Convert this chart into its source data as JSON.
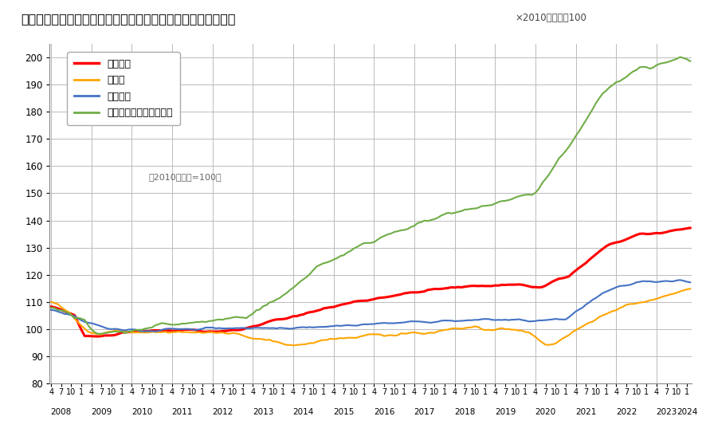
{
  "title": "＜不動産価格指数（住宅）（令和６年２月分・季節調整値）＞",
  "subtitle": "×2010年平均＝100",
  "note": "（2010年平均=100）",
  "ylim": [
    80,
    205
  ],
  "yticks": [
    80,
    90,
    100,
    110,
    120,
    130,
    140,
    150,
    160,
    170,
    180,
    190,
    200
  ],
  "series_names": [
    "住宅総合",
    "住宅地",
    "戸建住宅",
    "マンション（区分所有）"
  ],
  "series_colors": [
    "#ff0000",
    "#ffa500",
    "#4472c4",
    "#70ad47"
  ],
  "series_linewidths": [
    2.2,
    1.5,
    1.5,
    1.5
  ],
  "background_color": "#ffffff",
  "grid_color": "#bbbbbb",
  "years": [
    2008,
    2009,
    2010,
    2011,
    2012,
    2013,
    2014,
    2015,
    2016,
    2017,
    2018,
    2019,
    2020,
    2021,
    2022,
    2023,
    2024
  ]
}
